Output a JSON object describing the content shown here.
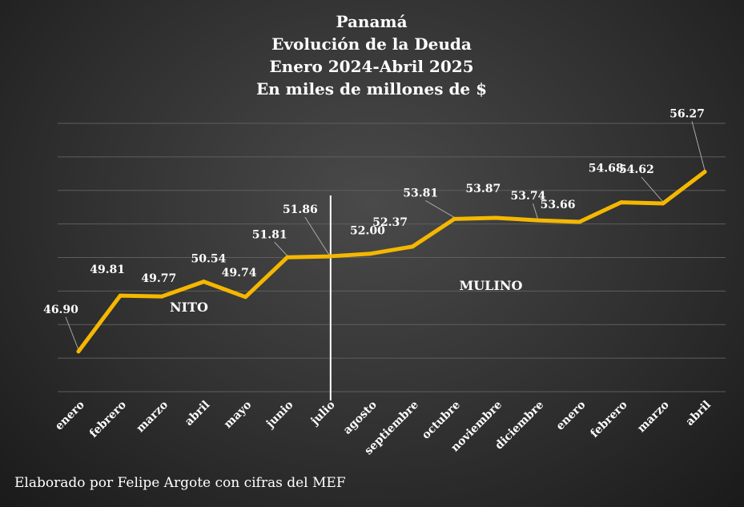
{
  "chart_data": {
    "type": "line",
    "title_lines": [
      "Panamá",
      "Evolución de la Deuda",
      "Enero 2024-Abril 2025",
      "En miles de millones de $"
    ],
    "categories": [
      "enero",
      "febrero",
      "marzo",
      "abril",
      "mayo",
      "junio",
      "julio",
      "agosto",
      "septiembre",
      "octubre",
      "noviembre",
      "diciembre",
      "enero",
      "febrero",
      "marzo",
      "abril"
    ],
    "series": [
      {
        "values": [
          46.9,
          49.81,
          49.77,
          50.54,
          49.74,
          51.81,
          51.86,
          52.0,
          52.37,
          53.81,
          53.87,
          53.74,
          53.66,
          54.68,
          54.62,
          56.27
        ],
        "labels": [
          "46.90",
          "49.81",
          "49.77",
          "50.54",
          "49.74",
          "51.81",
          "51.86",
          "52.00",
          "52.37",
          "53.81",
          "53.87",
          "53.74",
          "53.66",
          "54.68",
          "54.62",
          "56.27"
        ],
        "color": "#f5b700"
      }
    ],
    "ylim": [
      44.8,
      58.8
    ],
    "y_axis_labels_shown": false,
    "grid": true,
    "divider_after_category": "julio",
    "annotations": [
      "NITO",
      "MULINO"
    ],
    "footer": "Elaborado por Felipe Argote con cifras del MEF"
  }
}
